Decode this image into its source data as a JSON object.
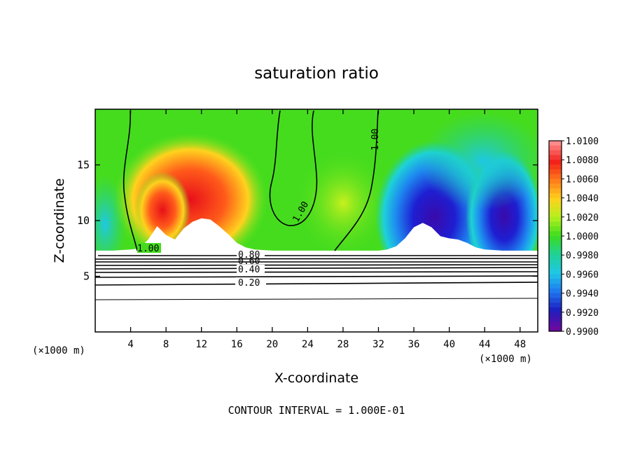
{
  "chart_data": {
    "type": "heatmap",
    "title": "saturation ratio",
    "xlabel": "X-coordinate",
    "ylabel": "Z-coordinate",
    "x_unit_left": "(×1000 m)",
    "x_unit_right": "(×1000 m)",
    "xlim": [
      0,
      50
    ],
    "ylim": [
      0,
      20
    ],
    "x_ticks": [
      "4",
      "8",
      "12",
      "16",
      "20",
      "24",
      "28",
      "32",
      "36",
      "40",
      "44",
      "48"
    ],
    "y_ticks": [
      "5",
      "10",
      "15"
    ],
    "footer": "CONTOUR INTERVAL = 1.000E-01",
    "colorbar": {
      "labels": [
        "1.0100",
        "1.0080",
        "1.0060",
        "1.0040",
        "1.0020",
        "1.0000",
        "0.9980",
        "0.9960",
        "0.9940",
        "0.9920",
        "0.9900"
      ],
      "colors": [
        "#ff8a8a",
        "#f2201a",
        "#ff7a1a",
        "#ffd21e",
        "#b4f01e",
        "#3cdc1e",
        "#1ed296",
        "#1ec8e6",
        "#1e78f0",
        "#1e1ebe",
        "#6a0aa0"
      ]
    },
    "contour_labels": [
      "1.00",
      "1.00",
      "1.00",
      "1.00",
      "0.80",
      "0.60",
      "0.40",
      "0.20"
    ],
    "terrain_profile": {
      "x": [
        0,
        2,
        4,
        5,
        6,
        7,
        8,
        9,
        10,
        11,
        12,
        13,
        14,
        15,
        16,
        17,
        18,
        20,
        22,
        26,
        30,
        32,
        33,
        34,
        35,
        36,
        37,
        38,
        39,
        40,
        41,
        42,
        43,
        44,
        46,
        48,
        50
      ],
      "z": [
        7.3,
        7.3,
        7.4,
        7.5,
        8.3,
        9.5,
        8.7,
        8.3,
        9.3,
        9.9,
        10.2,
        10.1,
        9.5,
        8.8,
        8.0,
        7.6,
        7.4,
        7.3,
        7.3,
        7.3,
        7.3,
        7.3,
        7.4,
        7.7,
        8.4,
        9.4,
        9.8,
        9.4,
        8.6,
        8.4,
        8.3,
        8.0,
        7.6,
        7.4,
        7.3,
        7.3,
        7.3
      ]
    },
    "legend": "right colorbar",
    "grid": false
  }
}
